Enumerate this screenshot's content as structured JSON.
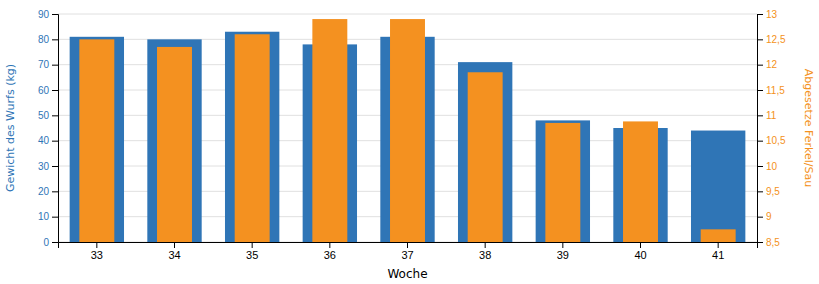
{
  "chart_data": {
    "type": "bar",
    "xlabel": "Woche",
    "ylabel": "Gewicht des Wurfs (kg)",
    "y2label": "Abgesetze Ferkel/Sau",
    "categories": [
      "33",
      "34",
      "35",
      "36",
      "37",
      "38",
      "39",
      "40",
      "41"
    ],
    "series": [
      {
        "color": "#2f75b6",
        "values": [
          81,
          80,
          83,
          78,
          81,
          71,
          48,
          45,
          44
        ]
      },
      {
        "color": "#f49120",
        "axis": "y2",
        "values": [
          12.5,
          12.35,
          12.6,
          12.9,
          12.9,
          11.85,
          10.85,
          10.88,
          8.75
        ]
      }
    ],
    "ylim": [
      0,
      90
    ],
    "yticks": [
      0,
      10,
      20,
      30,
      40,
      50,
      60,
      70,
      80,
      90
    ],
    "y2lim": [
      8.5,
      13.0
    ],
    "y2ticks": [
      {
        "value": 8.5,
        "label": "8,5"
      },
      9,
      {
        "value": 9.5,
        "label": "9,5"
      },
      10,
      {
        "value": 10.5,
        "label": "10,5"
      },
      11,
      {
        "value": 11.5,
        "label": "11,5"
      },
      12,
      {
        "value": 12.5,
        "label": "12,5"
      },
      13
    ],
    "grid": true
  }
}
